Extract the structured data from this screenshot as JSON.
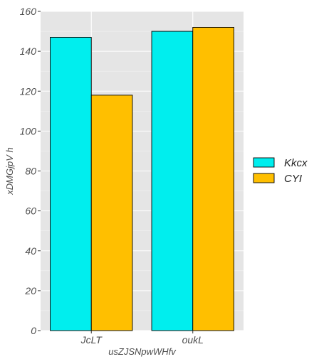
{
  "chart_data": {
    "type": "bar",
    "title": "",
    "xlabel": "usZJSNpwWHfv",
    "ylabel": "xDMGjpV h",
    "categories": [
      "JcLT",
      "oukL"
    ],
    "series": [
      {
        "name": "Kkcx",
        "values": [
          147,
          150
        ],
        "color": "#00eeee"
      },
      {
        "name": "CYI",
        "values": [
          118,
          152
        ],
        "color": "#ffbf00"
      }
    ],
    "ylim": [
      0,
      160
    ],
    "yticks": [
      0,
      20,
      40,
      60,
      80,
      100,
      120,
      140,
      160
    ],
    "grid": true,
    "legend_position": "right",
    "panel_background": "#e5e5e5",
    "bar_outline": "#000000"
  }
}
